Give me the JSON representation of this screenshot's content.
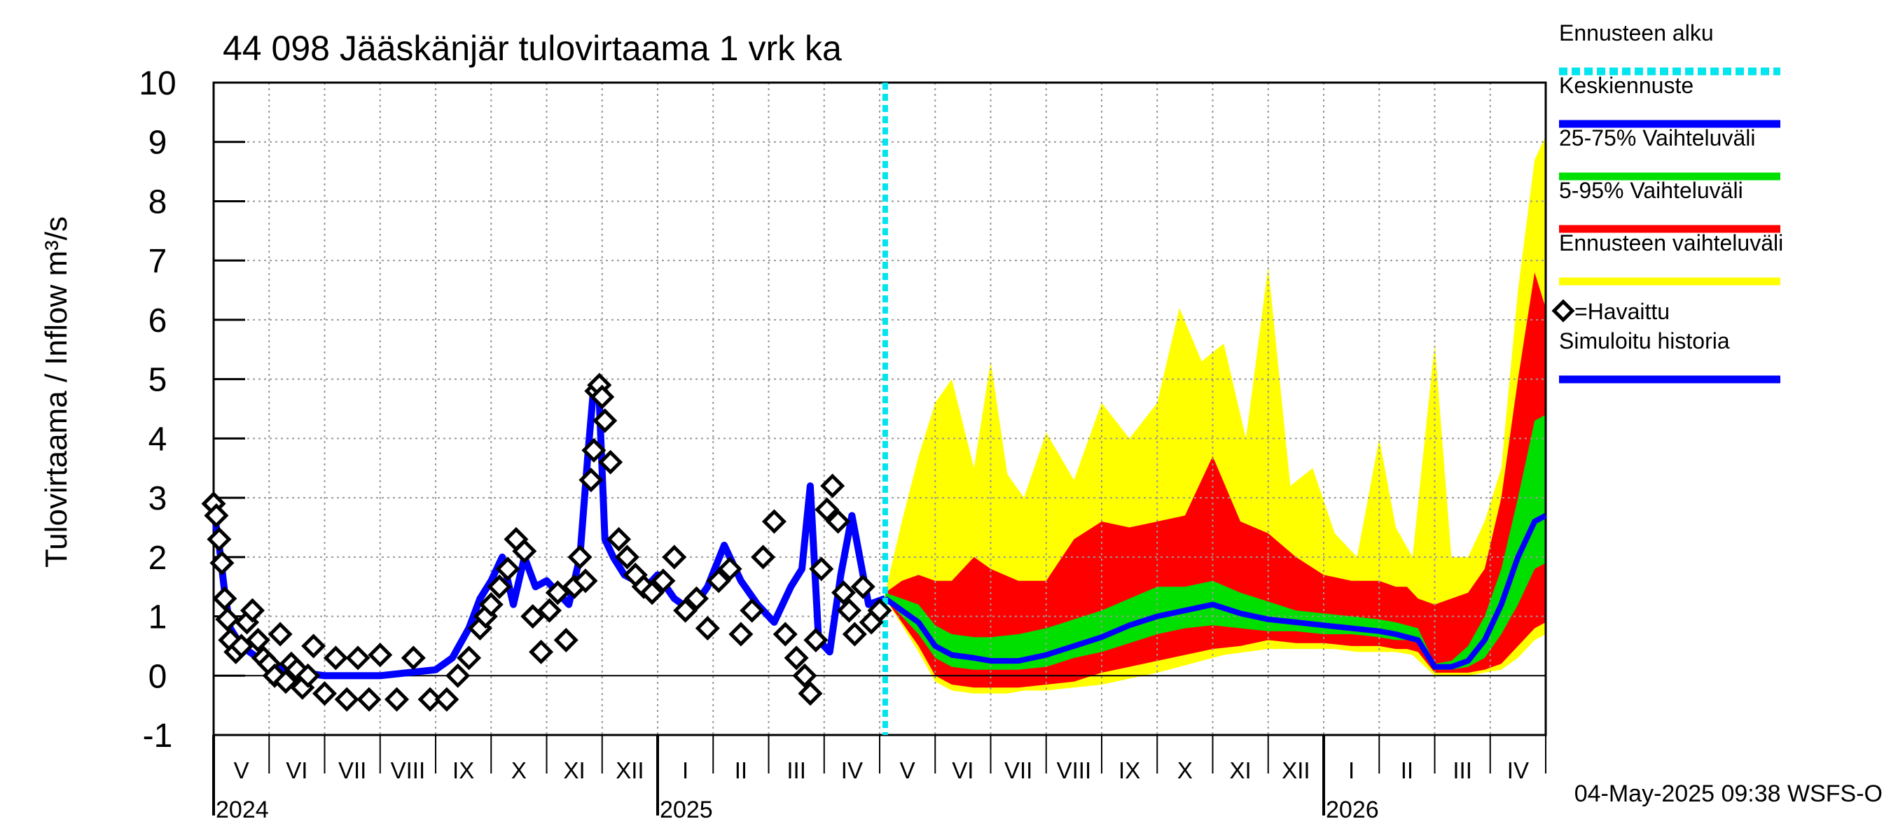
{
  "chart_data": {
    "type": "line",
    "title": "44 098 Jääskänjär tulovirtaama 1 vrk ka",
    "ylabel": "Tulovirtaama / Inflow    m³/s",
    "xlabel": "",
    "ylim": [
      -1,
      10
    ],
    "yticks": [
      "-1",
      "0",
      "1",
      "2",
      "3",
      "4",
      "5",
      "6",
      "7",
      "8",
      "9",
      "10"
    ],
    "x_unit": "month index from start of May 2024",
    "xlim": [
      0,
      24
    ],
    "forecast_start": 12.1,
    "months": [
      "V",
      "VI",
      "VII",
      "VIII",
      "IX",
      "X",
      "XI",
      "XII",
      "I",
      "II",
      "III",
      "IV",
      "V",
      "VI",
      "VII",
      "VIII",
      "IX",
      "X",
      "XI",
      "XII",
      "I",
      "II",
      "III",
      "IV"
    ],
    "years": [
      {
        "label": "2024",
        "at": 0
      },
      {
        "label": "2025",
        "at": 8
      },
      {
        "label": "2026",
        "at": 20
      }
    ],
    "timestamp": "04-May-2025 09:38 WSFS-O",
    "legend": {
      "position": "right",
      "items": [
        {
          "label": "Ennusteen alku",
          "color": "#00e5ee",
          "style": "dotted"
        },
        {
          "label": "Keskiennuste",
          "color": "#0000ff",
          "style": "solid"
        },
        {
          "label": "25-75% Vaihteluväli",
          "color": "#00e000",
          "style": "solid"
        },
        {
          "label": "5-95% Vaihteluväli",
          "color": "#ff0000",
          "style": "solid"
        },
        {
          "label": "Ennusteen vaihteluväli",
          "color": "#ffff00",
          "style": "solid"
        },
        {
          "label": "=Havaittu",
          "color": "#000000",
          "style": "diamond"
        },
        {
          "label": "Simuloitu historia",
          "color": "#0000ff",
          "style": "solid"
        }
      ]
    },
    "series": [
      {
        "name": "Simuloitu historia",
        "color": "#0000ff",
        "x": [
          0,
          0.1,
          0.2,
          0.3,
          0.5,
          0.8,
          1.0,
          1.3,
          1.6,
          2.0,
          2.5,
          3.0,
          3.5,
          4.0,
          4.3,
          4.6,
          4.8,
          5.0,
          5.2,
          5.4,
          5.6,
          5.8,
          6.0,
          6.2,
          6.4,
          6.6,
          6.75,
          6.85,
          6.95,
          7.05,
          7.2,
          7.4,
          7.6,
          7.8,
          8.0,
          8.3,
          8.6,
          8.9,
          9.2,
          9.5,
          9.8,
          10.1,
          10.4,
          10.6,
          10.75,
          10.9,
          11.1,
          11.3,
          11.5,
          11.8,
          12.1
        ],
        "values": [
          2.8,
          2.2,
          1.4,
          0.8,
          0.5,
          0.3,
          0.2,
          0.1,
          0.05,
          0.0,
          0.0,
          0.0,
          0.05,
          0.1,
          0.3,
          0.8,
          1.3,
          1.6,
          2.0,
          1.2,
          2.0,
          1.5,
          1.6,
          1.4,
          1.2,
          2.0,
          3.8,
          4.9,
          4.6,
          2.3,
          2.0,
          1.7,
          1.6,
          1.5,
          1.7,
          1.3,
          1.1,
          1.5,
          2.2,
          1.6,
          1.2,
          0.9,
          1.5,
          1.8,
          3.2,
          0.6,
          0.4,
          1.7,
          2.7,
          1.2,
          1.3
        ]
      },
      {
        "name": "Havaittu",
        "color": "#000000",
        "marker": "diamond",
        "x": [
          0.0,
          0.05,
          0.1,
          0.15,
          0.2,
          0.25,
          0.3,
          0.4,
          0.5,
          0.6,
          0.7,
          0.8,
          0.9,
          1.0,
          1.1,
          1.2,
          1.3,
          1.4,
          1.5,
          1.6,
          1.7,
          1.8,
          2.0,
          2.2,
          2.4,
          2.6,
          2.8,
          3.0,
          3.3,
          3.6,
          3.9,
          4.2,
          4.4,
          4.6,
          4.8,
          4.9,
          5.0,
          5.15,
          5.3,
          5.45,
          5.6,
          5.75,
          5.9,
          6.05,
          6.2,
          6.35,
          6.5,
          6.6,
          6.7,
          6.8,
          6.85,
          6.9,
          6.95,
          7.0,
          7.05,
          7.15,
          7.3,
          7.45,
          7.6,
          7.75,
          7.9,
          8.1,
          8.3,
          8.5,
          8.7,
          8.9,
          9.1,
          9.3,
          9.5,
          9.7,
          9.9,
          10.1,
          10.3,
          10.5,
          10.65,
          10.75,
          10.85,
          10.95,
          11.05,
          11.15,
          11.25,
          11.35,
          11.45,
          11.55,
          11.7,
          11.85,
          12.0
        ],
        "values": [
          2.9,
          2.7,
          2.3,
          1.9,
          1.3,
          0.95,
          0.6,
          0.4,
          0.5,
          0.9,
          1.1,
          0.6,
          0.3,
          0.2,
          0.0,
          0.7,
          -0.1,
          0.2,
          0.1,
          -0.2,
          0.0,
          0.5,
          -0.3,
          0.3,
          -0.4,
          0.3,
          -0.4,
          0.35,
          -0.4,
          0.3,
          -0.4,
          -0.4,
          0.0,
          0.3,
          0.8,
          1.0,
          1.2,
          1.5,
          1.8,
          2.3,
          2.1,
          1.0,
          0.4,
          1.1,
          1.4,
          0.6,
          1.5,
          2.0,
          1.6,
          3.3,
          3.8,
          4.8,
          4.9,
          4.7,
          4.3,
          3.6,
          2.3,
          2.0,
          1.7,
          1.5,
          1.4,
          1.6,
          2.0,
          1.1,
          1.3,
          0.8,
          1.6,
          1.8,
          0.7,
          1.1,
          2.0,
          2.6,
          0.7,
          0.3,
          0.0,
          -0.3,
          0.6,
          1.8,
          2.8,
          3.2,
          2.6,
          1.4,
          1.1,
          0.7,
          1.5,
          0.9,
          1.1
        ]
      },
      {
        "name": "Keskiennuste",
        "color": "#0000ff",
        "x": [
          12.1,
          12.4,
          12.7,
          13.0,
          13.3,
          13.7,
          14.0,
          14.5,
          15.0,
          15.5,
          16.0,
          16.5,
          17.0,
          17.5,
          18.0,
          18.5,
          19.0,
          19.5,
          20.0,
          20.5,
          21.0,
          21.3,
          21.5,
          21.7,
          22.0,
          22.3,
          22.6,
          22.9,
          23.2,
          23.5,
          23.8,
          24.0
        ],
        "values": [
          1.3,
          1.1,
          0.9,
          0.5,
          0.35,
          0.3,
          0.25,
          0.25,
          0.35,
          0.5,
          0.65,
          0.85,
          1.0,
          1.1,
          1.2,
          1.05,
          0.95,
          0.9,
          0.85,
          0.8,
          0.75,
          0.7,
          0.65,
          0.6,
          0.15,
          0.15,
          0.25,
          0.6,
          1.2,
          2.0,
          2.6,
          2.7
        ]
      },
      {
        "name": "25-75% Vaihteluväli",
        "color": "#00e000",
        "x": [
          12.1,
          12.4,
          12.7,
          13.0,
          13.3,
          13.7,
          14.0,
          14.5,
          15.0,
          15.5,
          16.0,
          16.5,
          17.0,
          17.5,
          18.0,
          18.5,
          19.0,
          19.5,
          20.0,
          20.5,
          21.0,
          21.3,
          21.5,
          21.7,
          22.0,
          22.3,
          22.6,
          22.9,
          23.2,
          23.5,
          23.8,
          24.0
        ],
        "lower": [
          1.3,
          1.0,
          0.7,
          0.3,
          0.15,
          0.1,
          0.1,
          0.1,
          0.15,
          0.3,
          0.4,
          0.55,
          0.7,
          0.8,
          0.85,
          0.8,
          0.75,
          0.75,
          0.7,
          0.7,
          0.65,
          0.6,
          0.6,
          0.55,
          0.1,
          0.1,
          0.15,
          0.3,
          0.7,
          1.2,
          1.8,
          1.9
        ],
        "upper": [
          1.4,
          1.3,
          1.2,
          0.85,
          0.7,
          0.65,
          0.65,
          0.7,
          0.8,
          0.95,
          1.1,
          1.3,
          1.5,
          1.5,
          1.6,
          1.4,
          1.25,
          1.1,
          1.05,
          1.0,
          0.95,
          0.9,
          0.85,
          0.8,
          0.2,
          0.25,
          0.5,
          1.0,
          1.8,
          3.0,
          4.3,
          4.4
        ]
      },
      {
        "name": "5-95% Vaihteluväli",
        "color": "#ff0000",
        "x": [
          12.1,
          12.4,
          12.7,
          13.0,
          13.3,
          13.7,
          14.0,
          14.5,
          15.0,
          15.5,
          16.0,
          16.5,
          17.0,
          17.5,
          18.0,
          18.5,
          19.0,
          19.5,
          20.0,
          20.5,
          21.0,
          21.3,
          21.5,
          21.7,
          22.0,
          22.3,
          22.6,
          22.9,
          23.2,
          23.5,
          23.8,
          24.0
        ],
        "lower": [
          1.3,
          0.9,
          0.5,
          0.0,
          -0.15,
          -0.2,
          -0.2,
          -0.2,
          -0.15,
          -0.1,
          0.05,
          0.15,
          0.25,
          0.35,
          0.45,
          0.5,
          0.6,
          0.55,
          0.55,
          0.5,
          0.5,
          0.45,
          0.45,
          0.4,
          0.05,
          0.05,
          0.05,
          0.1,
          0.2,
          0.5,
          0.8,
          0.9
        ],
        "upper": [
          1.4,
          1.6,
          1.7,
          1.6,
          1.6,
          2.0,
          1.8,
          1.6,
          1.6,
          2.3,
          2.6,
          2.5,
          2.6,
          2.7,
          3.7,
          2.6,
          2.4,
          2.0,
          1.7,
          1.6,
          1.6,
          1.5,
          1.5,
          1.3,
          1.2,
          1.3,
          1.4,
          1.8,
          3.0,
          5.0,
          6.8,
          6.2
        ]
      },
      {
        "name": "Ennusteen vaihteluväli",
        "color": "#ffff00",
        "x": [
          12.1,
          12.4,
          12.7,
          13.0,
          13.3,
          13.7,
          14.0,
          14.3,
          14.6,
          15.0,
          15.5,
          16.0,
          16.5,
          17.0,
          17.4,
          17.8,
          18.2,
          18.6,
          19.0,
          19.4,
          19.8,
          20.2,
          20.6,
          21.0,
          21.3,
          21.6,
          22.0,
          22.3,
          22.6,
          22.9,
          23.2,
          23.5,
          23.8,
          24.0
        ],
        "lower": [
          1.3,
          0.85,
          0.4,
          -0.1,
          -0.25,
          -0.3,
          -0.3,
          -0.3,
          -0.25,
          -0.25,
          -0.2,
          -0.15,
          -0.05,
          0.05,
          0.15,
          0.25,
          0.35,
          0.4,
          0.45,
          0.45,
          0.45,
          0.45,
          0.4,
          0.4,
          0.4,
          0.35,
          0.0,
          0.0,
          0.0,
          0.05,
          0.1,
          0.3,
          0.6,
          0.7
        ],
        "upper": [
          1.4,
          2.6,
          3.7,
          4.6,
          5.0,
          3.5,
          5.3,
          3.4,
          3.0,
          4.1,
          3.3,
          4.6,
          4.0,
          4.6,
          6.2,
          5.3,
          5.6,
          4.0,
          6.9,
          3.2,
          3.5,
          2.4,
          2.0,
          4.0,
          2.5,
          2.0,
          5.6,
          2.0,
          2.0,
          2.6,
          3.5,
          6.5,
          8.7,
          9.1
        ]
      }
    ]
  }
}
